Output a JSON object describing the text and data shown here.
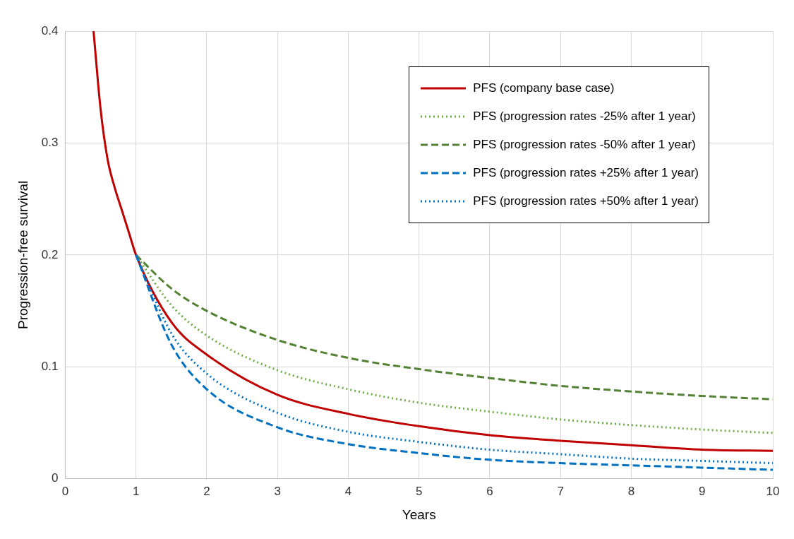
{
  "chart_data": {
    "type": "line",
    "xlabel": "Years",
    "ylabel": "Progression-free survival",
    "xlim": [
      0,
      10
    ],
    "ylim": [
      0,
      0.4
    ],
    "xticks": [
      0,
      1,
      2,
      3,
      4,
      5,
      6,
      7,
      8,
      9,
      10
    ],
    "yticks": [
      0,
      0.1,
      0.2,
      0.3,
      0.4
    ],
    "grid": true,
    "legend": "top right",
    "marker": "none",
    "series": [
      {
        "name": "PFS (company base case)",
        "color": "#c00000",
        "line_style": "solid",
        "x": [
          0.4,
          0.5,
          0.6,
          0.7,
          0.8,
          0.9,
          1,
          1.5,
          2,
          3,
          4,
          5,
          6,
          7,
          8,
          9,
          10
        ],
        "values": [
          0.4,
          0.33,
          0.285,
          0.26,
          0.24,
          0.22,
          0.2,
          0.14,
          0.111,
          0.075,
          0.058,
          0.047,
          0.039,
          0.034,
          0.03,
          0.026,
          0.025
        ]
      },
      {
        "name": "PFS (progression rates -25% after 1 year)",
        "color": "#70ad47",
        "line_style": "dotted",
        "x": [
          1,
          1.5,
          2,
          3,
          4,
          5,
          6,
          7,
          8,
          9,
          10
        ],
        "values": [
          0.2,
          0.155,
          0.128,
          0.097,
          0.08,
          0.068,
          0.06,
          0.053,
          0.048,
          0.044,
          0.041
        ]
      },
      {
        "name": "PFS (progression rates -50% after 1 year)",
        "color": "#548235",
        "line_style": "dashed",
        "x": [
          1,
          1.5,
          2,
          3,
          4,
          5,
          6,
          7,
          8,
          9,
          10
        ],
        "values": [
          0.2,
          0.17,
          0.15,
          0.124,
          0.108,
          0.098,
          0.09,
          0.083,
          0.078,
          0.074,
          0.071
        ]
      },
      {
        "name": "PFS (progression rates +25% after 1 year)",
        "color": "#0070c0",
        "line_style": "dashed",
        "x": [
          1,
          1.5,
          2,
          3,
          4,
          5,
          6,
          7,
          8,
          9,
          10
        ],
        "values": [
          0.2,
          0.12,
          0.08,
          0.046,
          0.031,
          0.023,
          0.017,
          0.014,
          0.012,
          0.01,
          0.008
        ]
      },
      {
        "name": "PFS (progression rates +50% after 1 year)",
        "color": "#0070c0",
        "line_style": "dotted",
        "x": [
          1,
          1.5,
          2,
          3,
          4,
          5,
          6,
          7,
          8,
          9,
          10
        ],
        "values": [
          0.2,
          0.13,
          0.094,
          0.059,
          0.042,
          0.033,
          0.026,
          0.022,
          0.018,
          0.016,
          0.014
        ]
      }
    ]
  }
}
